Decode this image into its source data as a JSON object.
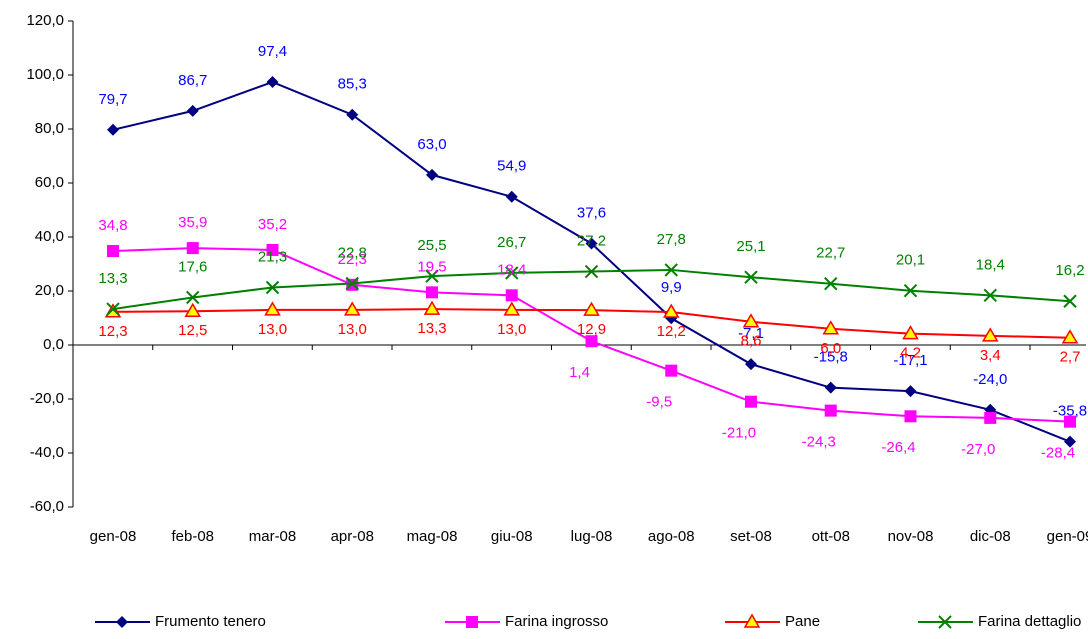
{
  "chart_data": {
    "type": "line",
    "categories": [
      "gen-08",
      "feb-08",
      "mar-08",
      "apr-08",
      "mag-08",
      "giu-08",
      "lug-08",
      "ago-08",
      "set-08",
      "ott-08",
      "nov-08",
      "dic-08",
      "gen-09"
    ],
    "ylim": [
      -60,
      120
    ],
    "yticks": [
      {
        "value": -60,
        "label": "-60,0"
      },
      {
        "value": -40,
        "label": "-40,0"
      },
      {
        "value": -20,
        "label": "-20,0"
      },
      {
        "value": 0,
        "label": "0,0"
      },
      {
        "value": 20,
        "label": "20,0"
      },
      {
        "value": 40,
        "label": "40,0"
      },
      {
        "value": 60,
        "label": "60,0"
      },
      {
        "value": 80,
        "label": "80,0"
      },
      {
        "value": 100,
        "label": "100,0"
      },
      {
        "value": 120,
        "label": "120,0"
      }
    ],
    "grid": false,
    "legend": "bottom",
    "series": [
      {
        "name": "Frumento tenero",
        "color": "#000080",
        "label_color": "#0000ff",
        "marker": "diamond",
        "values": [
          79.7,
          86.7,
          97.4,
          85.3,
          63.0,
          54.9,
          37.6,
          9.9,
          -7.1,
          -15.8,
          -17.1,
          -24.0,
          -35.8
        ],
        "value_labels": [
          "79,7",
          "86,7",
          "97,4",
          "85,3",
          "63,0",
          "54,9",
          "37,6",
          "9,9",
          "-7,1",
          "-15,8",
          "-17,1",
          "-24,0",
          "-35,8"
        ]
      },
      {
        "name": "Farina ingrosso",
        "color": "#ff00ff",
        "label_color": "#ff00ff",
        "marker": "square",
        "values": [
          34.8,
          35.9,
          35.2,
          22.3,
          19.5,
          18.4,
          1.4,
          -9.5,
          -21.0,
          -24.3,
          -26.4,
          -27.0,
          -28.4
        ],
        "value_labels": [
          "34,8",
          "35,9",
          "35,2",
          "22,3",
          "19,5",
          "18,4",
          "1,4",
          "-9,5",
          "-21,0",
          "-24,3",
          "-26,4",
          "-27,0",
          "-28,4"
        ]
      },
      {
        "name": "Pane",
        "color": "#ff0000",
        "label_color": "#ff0000",
        "marker": "triangle",
        "values": [
          12.3,
          12.5,
          13.0,
          13.0,
          13.3,
          13.0,
          12.9,
          12.2,
          8.6,
          6.0,
          4.2,
          3.4,
          2.7
        ],
        "value_labels": [
          "12,3",
          "12,5",
          "13,0",
          "13,0",
          "13,3",
          "13,0",
          "12,9",
          "12,2",
          "8,6",
          "6,0",
          "4,2",
          "3,4",
          "2,7"
        ]
      },
      {
        "name": "Farina dettaglio",
        "color": "#008000",
        "label_color": "#008000",
        "marker": "x",
        "values": [
          13.3,
          17.6,
          21.3,
          22.8,
          25.5,
          26.7,
          27.2,
          27.8,
          25.1,
          22.7,
          20.1,
          18.4,
          16.2
        ],
        "value_labels": [
          "13,3",
          "17,6",
          "21,3",
          "22,8",
          "25,5",
          "26,7",
          "27,2",
          "27,8",
          "25,1",
          "22,7",
          "20,1",
          "18,4",
          "16,2"
        ]
      }
    ]
  }
}
